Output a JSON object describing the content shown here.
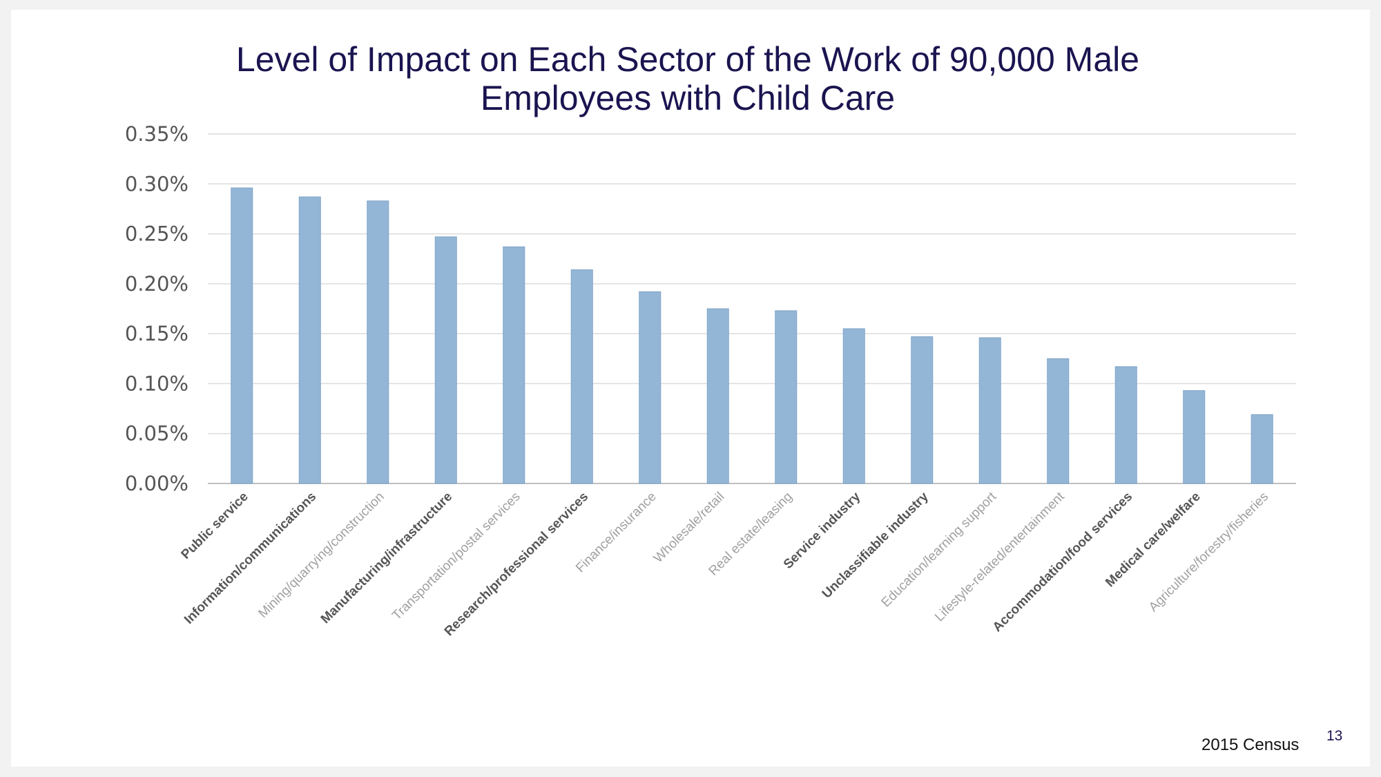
{
  "slide": {
    "title_line1": "Level of Impact on Each Sector of the Work of 90,000 Male",
    "title_line2": "Employees with Child Care",
    "source": "2015 Census",
    "page_number": "13"
  },
  "chart_data": {
    "type": "bar",
    "title": "",
    "xlabel": "",
    "ylabel": "",
    "ylim": [
      0,
      0.35
    ],
    "y_ticks": [
      "0.00%",
      "0.05%",
      "0.10%",
      "0.15%",
      "0.20%",
      "0.25%",
      "0.30%",
      "0.35%"
    ],
    "grid": true,
    "legend": "none",
    "bar_color": "#94b6d6",
    "categories": [
      "Public service",
      "Information/communications",
      "Mining/quarrying/construction",
      "Manufacturing/infrastructure",
      "Transportation/postal services",
      "Research/professional services",
      "Finance/insurance",
      "Wholesale/retail",
      "Real estate/leasing",
      "Service industry",
      "Unclassifiable industry",
      "Education/learning support",
      "Lifestyle-related/entertainment",
      "Accommodation/food services",
      "Medical care/welfare",
      "Agriculture/forestry/fisheries"
    ],
    "category_bold": [
      true,
      true,
      false,
      true,
      false,
      true,
      false,
      false,
      false,
      true,
      true,
      false,
      false,
      true,
      true,
      false
    ],
    "values": [
      0.296,
      0.287,
      0.283,
      0.247,
      0.237,
      0.214,
      0.192,
      0.175,
      0.173,
      0.155,
      0.147,
      0.146,
      0.125,
      0.117,
      0.093,
      0.069
    ],
    "unit": "%"
  }
}
